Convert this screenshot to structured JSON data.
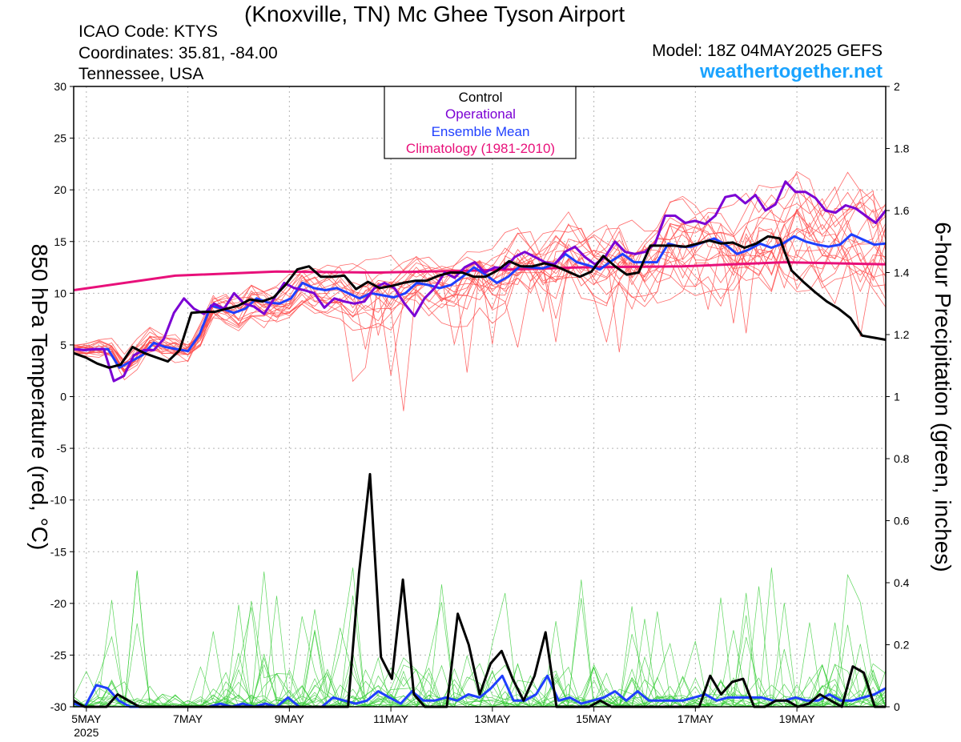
{
  "header": {
    "title": "(Knoxville, TN) Mc Ghee Tyson Airport",
    "icao": "ICAO Code: KTYS",
    "coordinates": "Coordinates: 35.81, -84.00",
    "region": "Tennessee, USA",
    "model": "Model: 18Z 04MAY2025 GEFS",
    "site": "weathertogether.net"
  },
  "colors": {
    "control": "#000000",
    "operational": "#7b00d4",
    "ensemble_mean": "#1f3fff",
    "climatology": "#e8107a",
    "members_temp": "#ff4d4d",
    "members_precip": "#33cc33"
  },
  "chart_data": {
    "type": "line",
    "ylabel": "850 hPa Temperature (red, °C)",
    "y2label": "6-hour Precipitation (green, inches)",
    "ylim": [
      -30,
      30
    ],
    "y2lim": [
      0,
      2
    ],
    "yticks": [
      30,
      25,
      20,
      15,
      10,
      5,
      0,
      -5,
      -10,
      -15,
      -20,
      -25,
      -30
    ],
    "y2ticks": [
      "2",
      "1.8",
      "1.6",
      "1.4",
      "1.2",
      "1",
      "0.8",
      "0.6",
      "0.4",
      "0.2",
      "0"
    ],
    "xlim": [
      0,
      64
    ],
    "xticks": [
      {
        "x": 1,
        "label": "5MAY",
        "sub": "2025"
      },
      {
        "x": 9,
        "label": "7MAY"
      },
      {
        "x": 17,
        "label": "9MAY"
      },
      {
        "x": 25,
        "label": "11MAY"
      },
      {
        "x": 33,
        "label": "13MAY"
      },
      {
        "x": 41,
        "label": "15MAY"
      },
      {
        "x": 49,
        "label": "17MAY"
      },
      {
        "x": 57,
        "label": "19MAY"
      }
    ],
    "grid": true,
    "legend": {
      "position": "top-center",
      "entries": [
        "Control",
        "Operational",
        "Ensemble Mean",
        "Climatology (1981-2010)"
      ]
    },
    "series": [
      {
        "name": "Control",
        "axis": "temperature",
        "values": [
          4.2,
          3.8,
          3.2,
          2.8,
          3.1,
          4.8,
          4.2,
          3.8,
          3.4,
          4.5,
          8.1,
          8.2,
          8.2,
          8.5,
          8.8,
          9.4,
          9.2,
          9.6,
          10.8,
          12.3,
          12.6,
          11.6,
          11.6,
          11.7,
          10.4,
          11.1,
          10.5,
          10.7,
          11,
          11.2,
          11.2,
          11.7,
          12,
          12,
          11.6,
          11.6,
          12.2,
          13.1,
          12.6,
          12.6,
          12.9,
          12.6,
          12.1,
          11.6,
          12.1,
          13.6,
          12.6,
          11.8,
          12,
          14.6,
          14.6,
          14.6,
          14.5,
          14.8,
          15.1,
          14.8,
          14.9,
          14.4,
          14.8,
          15.5,
          15.3,
          12.2,
          11.1,
          10.1,
          9.2,
          8.5,
          7.6,
          5.9,
          5.7,
          5.5
        ]
      },
      {
        "name": "Operational",
        "axis": "temperature",
        "values": [
          4.6,
          4.5,
          4.6,
          4.6,
          1.5,
          2,
          4,
          4.5,
          4.5,
          5.6,
          8.1,
          9.5,
          8.5,
          8,
          9,
          8.5,
          10,
          9,
          8.7,
          8,
          9.5,
          11,
          10.5,
          10.3,
          10,
          8.6,
          9.5,
          9.2,
          9,
          9.2,
          10.5,
          11,
          10.5,
          9,
          7.8,
          9.5,
          10.5,
          12,
          11.5,
          12.5,
          13,
          12,
          12.5,
          12.4,
          13.5,
          14,
          13.5,
          13,
          12.8,
          14,
          14.5,
          13.5,
          12.8,
          13.5,
          15,
          14,
          13.8,
          14,
          14.8,
          17.5,
          17.5,
          16.8,
          17,
          16.7,
          17.5,
          19.3,
          19.5,
          18.7,
          19.5,
          18,
          18.6,
          20.8,
          19.8,
          19.8,
          19.2,
          18,
          17.8,
          18.5,
          18.2,
          17.5,
          16.8,
          18
        ]
      },
      {
        "name": "Ensemble Mean",
        "axis": "temperature",
        "values": [
          4.6,
          4.5,
          4.6,
          4.6,
          2.8,
          3.4,
          4,
          5.2,
          4.8,
          4.6,
          4.4,
          6,
          8.8,
          8.5,
          8.1,
          8.5,
          9.5,
          9.1,
          9,
          9.5,
          11,
          10.5,
          10.3,
          10.5,
          10,
          9.5,
          10,
          9.8,
          9.6,
          10,
          11,
          10.8,
          10.5,
          10.8,
          11.6,
          12.5,
          11.8,
          11,
          11.6,
          12.6,
          12.5,
          12.4,
          12.8,
          13.8,
          13,
          12.7,
          12.3,
          13.1,
          13.8,
          13,
          13,
          13,
          14.8,
          14.5,
          14.5,
          14.9,
          15.3,
          14.7,
          13.8,
          14.2,
          14.8,
          14.4,
          14.8,
          15.5,
          15,
          14.7,
          14.5,
          14.7,
          15.7,
          15.2,
          14.7,
          14.8
        ]
      },
      {
        "name": "Climatology (1981-2010)",
        "axis": "temperature",
        "x": [
          0,
          8,
          16,
          24,
          32,
          40,
          48,
          56,
          64
        ],
        "values": [
          10.3,
          11.7,
          12.1,
          12,
          12.2,
          12.5,
          12.6,
          13,
          12.8
        ]
      },
      {
        "name": "Control",
        "axis": "precipitation",
        "values": [
          0.02,
          0,
          0,
          0,
          0.04,
          0.02,
          0,
          0,
          0,
          0,
          0,
          0,
          0,
          0,
          0,
          0,
          0,
          0,
          0,
          0,
          0,
          0,
          0,
          0,
          0,
          0,
          0.43,
          0.75,
          0.16,
          0.09,
          0.41,
          0.04,
          0,
          0,
          0,
          0.3,
          0.2,
          0.04,
          0.14,
          0.18,
          0.09,
          0.02,
          0.1,
          0.24,
          0,
          0,
          0,
          0,
          0.02,
          0,
          0,
          0,
          0,
          0,
          0,
          0,
          0,
          0,
          0.1,
          0.04,
          0.08,
          0.09,
          0,
          0,
          0.02,
          0.02,
          0,
          0.01,
          0.04,
          0.02,
          0,
          0.13,
          0.11,
          0,
          0
        ]
      },
      {
        "name": "Ensemble Mean",
        "axis": "precipitation",
        "values": [
          0.01,
          0,
          0.07,
          0.06,
          0.02,
          0,
          0,
          0,
          0,
          0,
          0,
          0,
          0,
          0.01,
          0,
          0.01,
          0,
          0.01,
          0,
          0.03,
          0,
          0,
          0,
          0.03,
          0.02,
          0.01,
          0.02,
          0.05,
          0.03,
          0.01,
          0.05,
          0.02,
          0.02,
          0.03,
          0.02,
          0.04,
          0.03,
          0.06,
          0.1,
          0.02,
          0.02,
          0.04,
          0.1,
          0.02,
          0.03,
          0.01,
          0.02,
          0.03,
          0.05,
          0.02,
          0.05,
          0.02,
          0.02,
          0.02,
          0.02,
          0.03,
          0.04,
          0.02,
          0.03,
          0.03,
          0.03,
          0.03,
          0.02,
          0.02,
          0.03,
          0.02,
          0.02,
          0.04,
          0.02,
          0.02,
          0.03,
          0.04,
          0.06
        ]
      }
    ]
  }
}
